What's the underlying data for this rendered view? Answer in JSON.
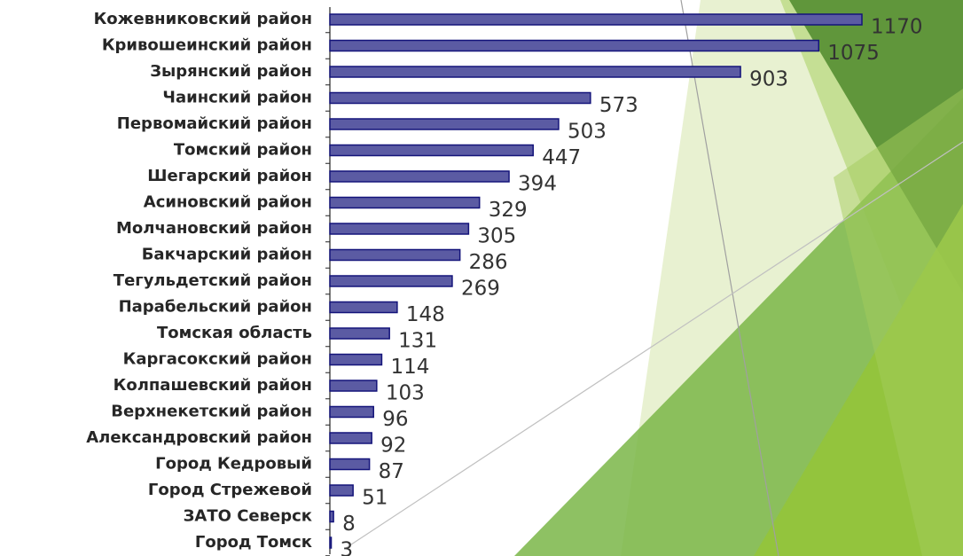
{
  "chart_data": {
    "type": "barh",
    "categories": [
      "Кожевниковский район",
      "Кривошеинский район",
      "Зырянский район",
      "Чаинский район",
      "Первомайский район",
      "Томский район",
      "Шегарский район",
      "Асиновский район",
      "Молчановский район",
      "Бакчарский район",
      "Тегульдетский район",
      "Парабельский район",
      "Томская область",
      "Каргасокский район",
      "Колпашевский район",
      "Верхнекетский район",
      "Александровский район",
      "Город Кедровый",
      "Город Стрежевой",
      "ЗАТО Северск",
      "Город Томск"
    ],
    "values": [
      1170,
      1075,
      903,
      573,
      503,
      447,
      394,
      329,
      305,
      286,
      269,
      148,
      131,
      114,
      103,
      96,
      92,
      87,
      51,
      8,
      3
    ],
    "color": "#5b5ba3"
  }
}
